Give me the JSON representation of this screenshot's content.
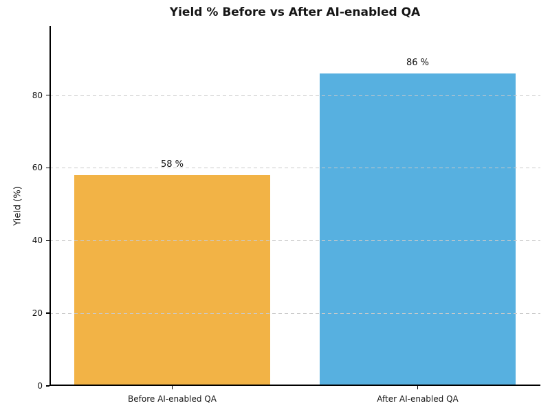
{
  "chart_data": {
    "type": "bar",
    "title": "Yield % Before vs After AI-enabled QA",
    "xlabel": "",
    "ylabel": "Yield (%)",
    "categories": [
      "Before AI-enabled QA",
      "After AI-enabled QA"
    ],
    "values": [
      58,
      86
    ],
    "bar_value_labels": [
      "58 %",
      "86 %"
    ],
    "bar_colors": [
      "#F2B346",
      "#57B0E0"
    ],
    "yticks": [
      0,
      20,
      40,
      60,
      80
    ],
    "ylim": [
      0,
      99
    ],
    "grid": "horizontal-dashed",
    "grid_color": "#c9c9c9",
    "axis_color": "#000000",
    "text_color": "#151515",
    "background_color": "#ffffff",
    "legend": "none",
    "bar_width_fraction": 0.8
  }
}
